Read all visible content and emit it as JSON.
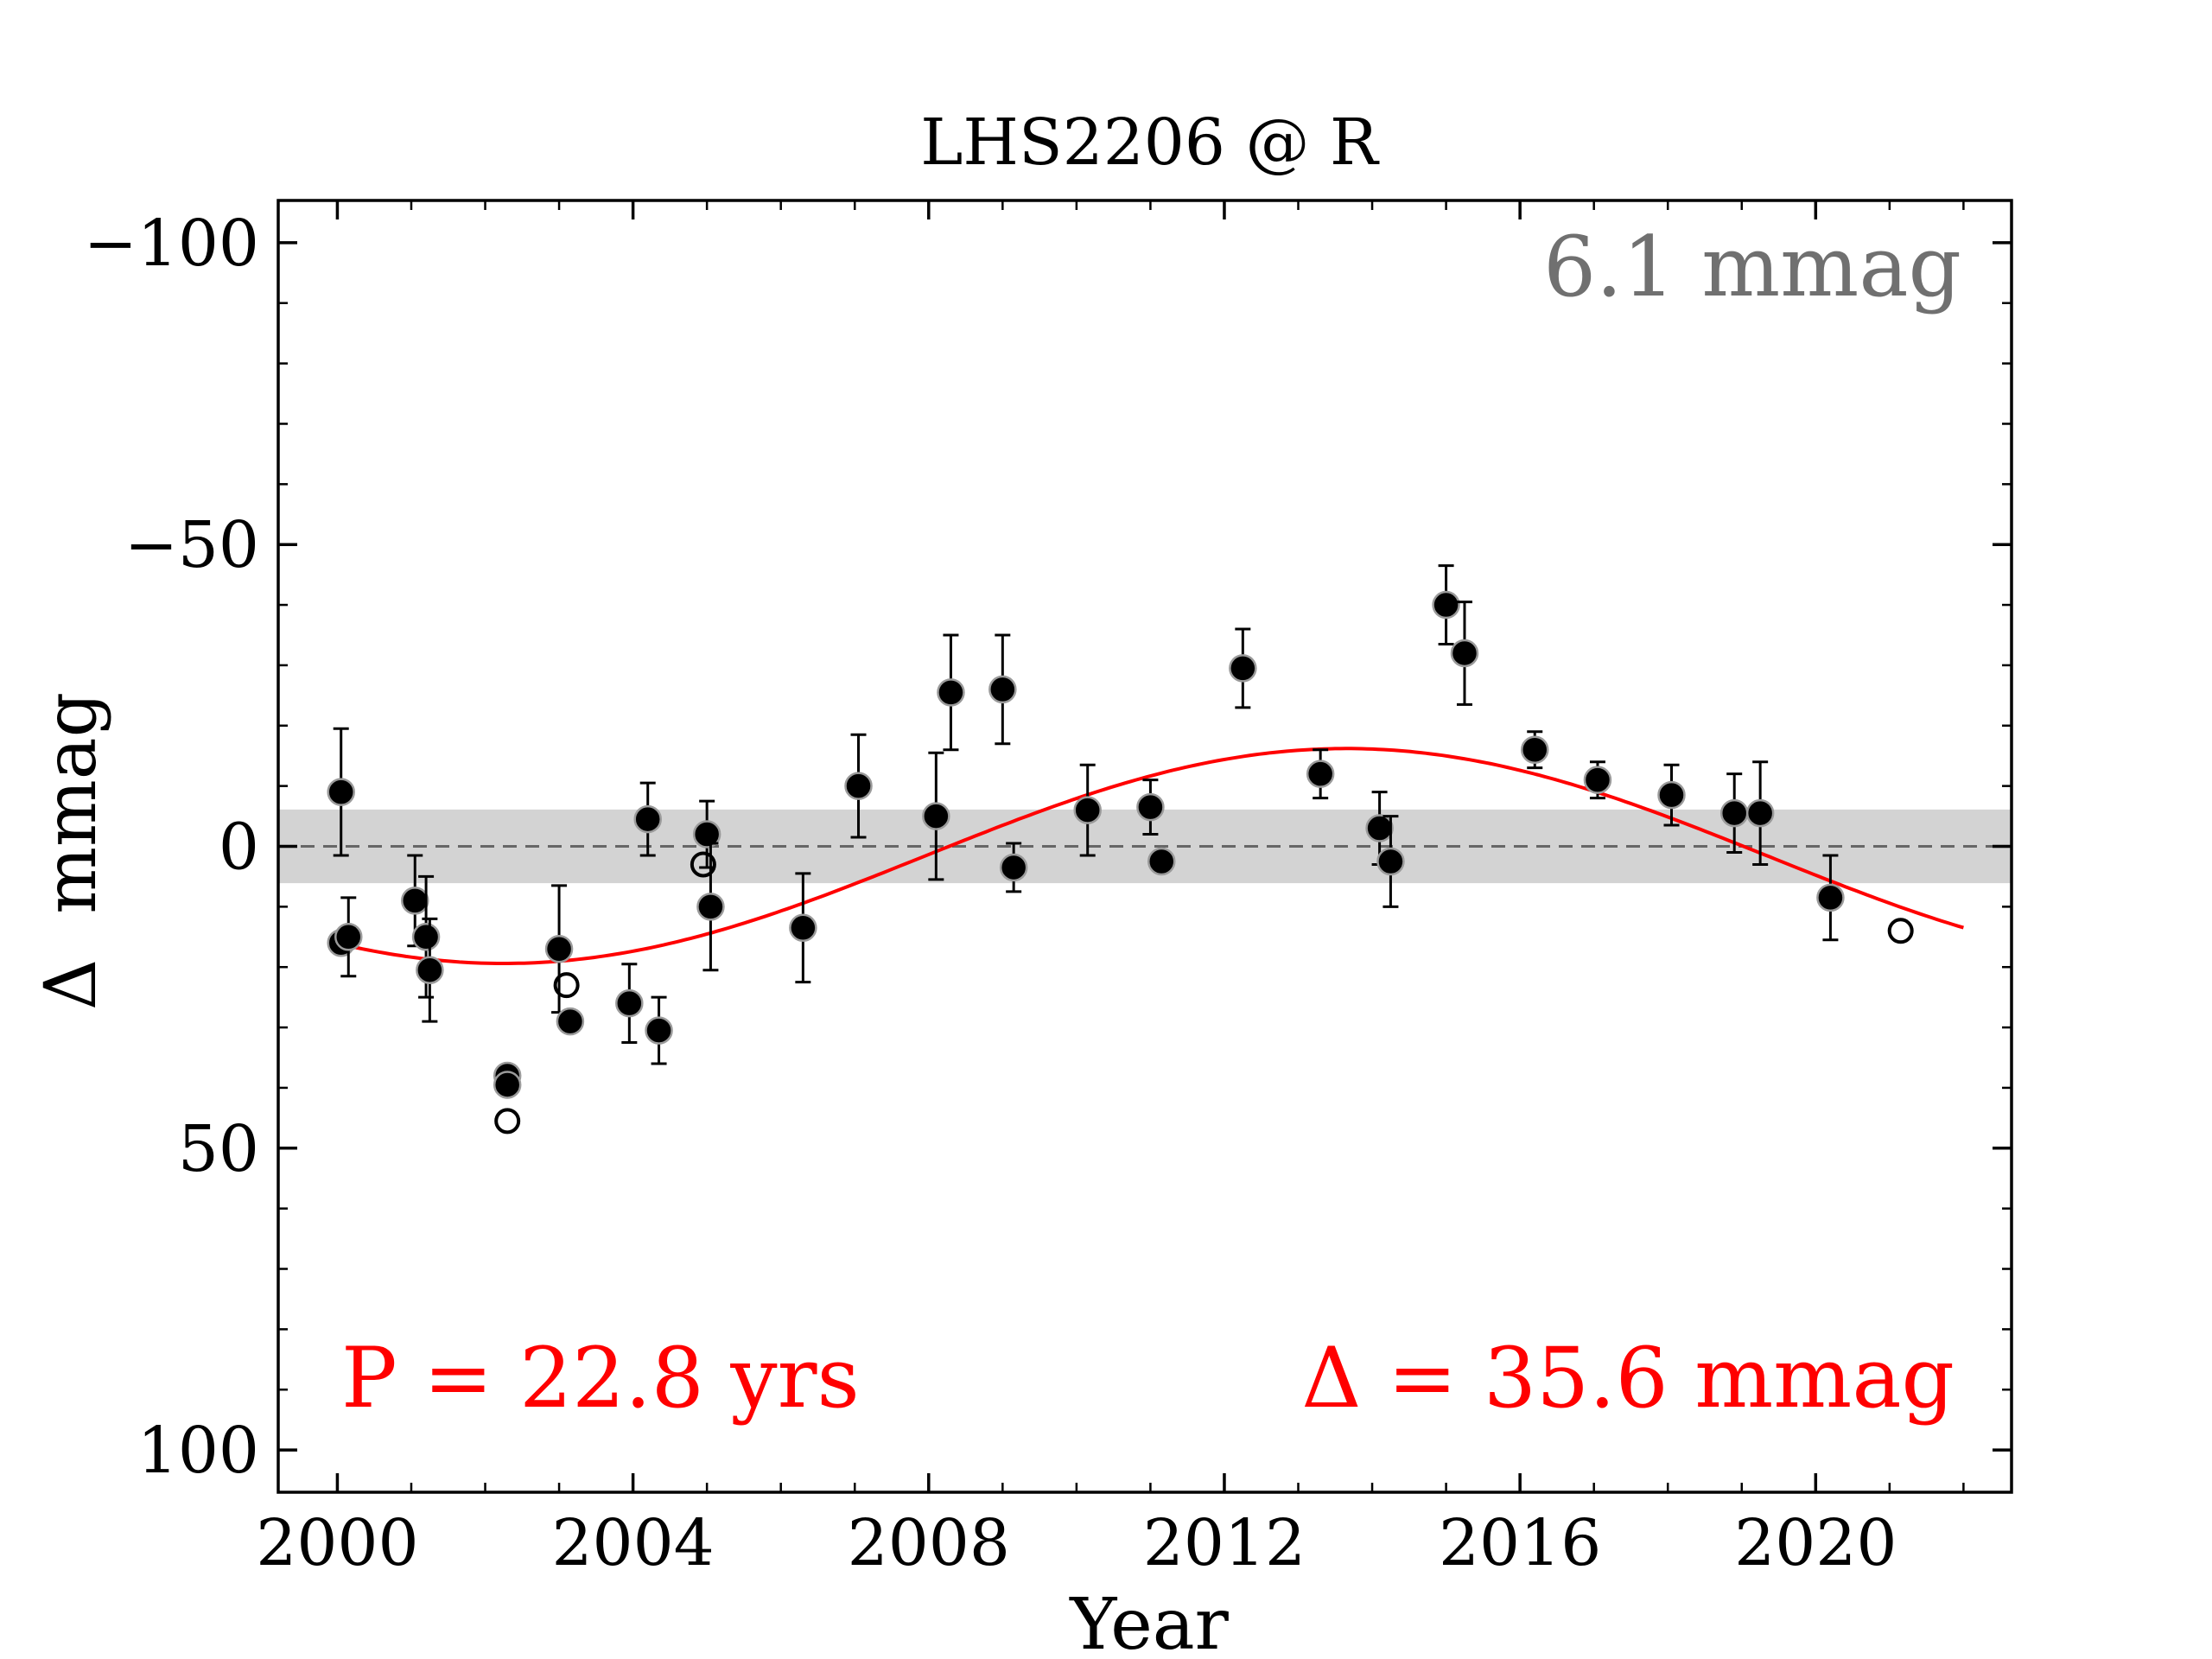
{
  "chart_data": {
    "type": "scatter",
    "title": "LHS2206 @ R",
    "xlabel": "Year",
    "ylabel": "Δ  mmag",
    "xlim": [
      1999.2,
      2022.65
    ],
    "ylim": [
      107,
      -107
    ],
    "y_inverted": true,
    "x_ticks": [
      2000,
      2004,
      2008,
      2012,
      2016,
      2020
    ],
    "y_ticks": [
      -100,
      -50,
      0,
      50,
      100
    ],
    "x_tick_labels": [
      "2000",
      "2004",
      "2008",
      "2012",
      "2016",
      "2020"
    ],
    "y_tick_labels": [
      "−100",
      "−50",
      "0",
      "50",
      "100"
    ],
    "grid": false,
    "reference_line": {
      "y": 0,
      "style": "dashed"
    },
    "scatter_band": {
      "half_width": 6.1,
      "label": "6.1 mmag"
    },
    "fit": {
      "label_period": "P = 22.8 yrs",
      "label_amplitude": "Δ = 35.6 mmag",
      "period": 22.8,
      "amplitude": 35.6,
      "offset": 1.6,
      "peak_year": 2013.65,
      "x_range": [
        2000.2,
        2022.0
      ]
    },
    "nightly_points": [
      {
        "x": 2000.05,
        "y": -9,
        "err": 10.5
      },
      {
        "x": 2000.05,
        "y": 16,
        "err": 0
      },
      {
        "x": 2000.15,
        "y": 15,
        "err": 6.5
      },
      {
        "x": 2001.05,
        "y": 9,
        "err": 7.5
      },
      {
        "x": 2001.2,
        "y": 15,
        "err": 10
      },
      {
        "x": 2001.25,
        "y": 20.5,
        "err": 8.5
      },
      {
        "x": 2002.3,
        "y": 38,
        "err": 0
      },
      {
        "x": 2002.3,
        "y": 39.5,
        "err": 0
      },
      {
        "x": 2003.0,
        "y": 17,
        "err": 10.5
      },
      {
        "x": 2003.15,
        "y": 29,
        "err": 0
      },
      {
        "x": 2003.95,
        "y": 26,
        "err": 6.5
      },
      {
        "x": 2004.2,
        "y": -4.5,
        "err": 6
      },
      {
        "x": 2004.35,
        "y": 30.5,
        "err": 5.5
      },
      {
        "x": 2005.0,
        "y": -2,
        "err": 5.5
      },
      {
        "x": 2005.05,
        "y": 10,
        "err": 10.5
      },
      {
        "x": 2006.3,
        "y": 13.5,
        "err": 9
      },
      {
        "x": 2007.05,
        "y": -10,
        "err": 8.5
      },
      {
        "x": 2008.1,
        "y": -5,
        "err": 10.5
      },
      {
        "x": 2008.3,
        "y": -25.5,
        "err": 9.5
      },
      {
        "x": 2009.0,
        "y": -26,
        "err": 9
      },
      {
        "x": 2009.15,
        "y": 3.5,
        "err": 4
      },
      {
        "x": 2010.15,
        "y": -6,
        "err": 7.5
      },
      {
        "x": 2011.0,
        "y": -6.5,
        "err": 4.5
      },
      {
        "x": 2011.15,
        "y": 2.5,
        "err": 0
      },
      {
        "x": 2012.25,
        "y": -29.5,
        "err": 6.5
      },
      {
        "x": 2013.3,
        "y": -12,
        "err": 4
      },
      {
        "x": 2014.1,
        "y": -3,
        "err": 6
      },
      {
        "x": 2014.25,
        "y": 2.5,
        "err": 7.5
      },
      {
        "x": 2015.0,
        "y": -40,
        "err": 6.5
      },
      {
        "x": 2015.25,
        "y": -32,
        "err": 8.5
      },
      {
        "x": 2016.2,
        "y": -16,
        "err": 3
      },
      {
        "x": 2017.05,
        "y": -11,
        "err": 3
      },
      {
        "x": 2018.05,
        "y": -8.5,
        "err": 5
      },
      {
        "x": 2018.9,
        "y": -5.5,
        "err": 6.5
      },
      {
        "x": 2019.25,
        "y": -5.5,
        "err": 8.5
      },
      {
        "x": 2020.2,
        "y": 8.5,
        "err": 7
      }
    ],
    "excluded_points": [
      {
        "x": 2002.3,
        "y": 45.5
      },
      {
        "x": 2003.1,
        "y": 23
      },
      {
        "x": 2004.95,
        "y": 3
      },
      {
        "x": 2021.15,
        "y": 14
      }
    ]
  }
}
